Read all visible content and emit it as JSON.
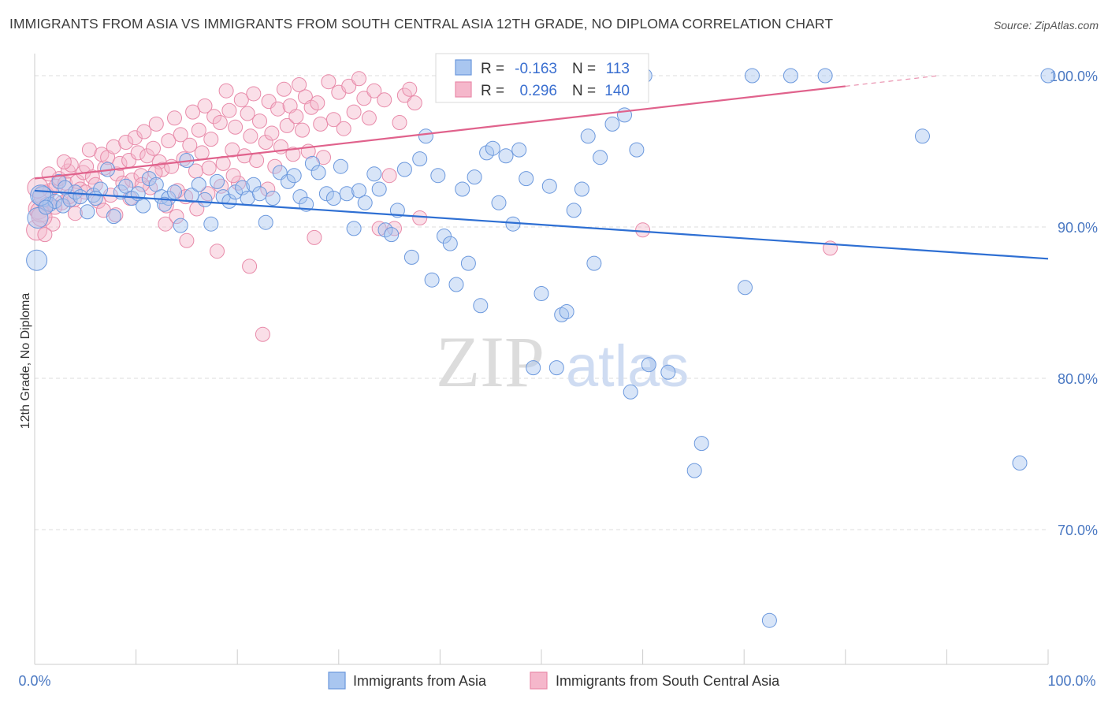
{
  "title": "IMMIGRANTS FROM ASIA VS IMMIGRANTS FROM SOUTH CENTRAL ASIA 12TH GRADE, NO DIPLOMA CORRELATION CHART",
  "source": "Source: ZipAtlas.com",
  "watermark": {
    "zip": "ZIP",
    "atlas": "atlas"
  },
  "colors": {
    "blue_fill": "#a9c6f0",
    "blue_stroke": "#6b98dd",
    "blue_line": "#2e6fd3",
    "pink_fill": "#f5b7cb",
    "pink_stroke": "#e88aa9",
    "pink_line": "#e0628c",
    "grid": "#dddddd",
    "tick_text": "#4a78c2"
  },
  "legend_box": {
    "rows": [
      {
        "r_label": "R =",
        "r_value": "-0.163",
        "n_label": "N =",
        "n_value": "113"
      },
      {
        "r_label": "R =",
        "r_value": "0.296",
        "n_label": "N =",
        "n_value": "140"
      }
    ]
  },
  "chart_data": {
    "type": "scatter",
    "xlabel": "",
    "ylabel": "12th Grade, No Diploma",
    "xlim": [
      0,
      100
    ],
    "ylim": [
      60,
      101.5
    ],
    "x_tick_labels": [
      "0.0%",
      "100.0%"
    ],
    "y_ticks": [
      70,
      80,
      90,
      100
    ],
    "y_tick_labels": [
      "70.0%",
      "80.0%",
      "90.0%",
      "100.0%"
    ],
    "grid": true,
    "legend_position": "bottom-center",
    "series": [
      {
        "name": "Immigrants from Asia",
        "color": "blue",
        "trend": {
          "x": [
            0,
            100
          ],
          "y": [
            92.4,
            87.9
          ]
        },
        "points": [
          [
            0.2,
            87.8
          ],
          [
            0.3,
            90.6
          ],
          [
            0.8,
            92.0
          ],
          [
            1.5,
            91.5
          ],
          [
            2.0,
            91.7
          ],
          [
            2.8,
            91.4
          ],
          [
            3.5,
            91.8
          ],
          [
            4.0,
            92.3
          ],
          [
            4.5,
            92.0
          ],
          [
            5.2,
            91.0
          ],
          [
            5.8,
            92.1
          ],
          [
            6.5,
            92.5
          ],
          [
            7.2,
            93.8
          ],
          [
            7.8,
            90.7
          ],
          [
            8.5,
            92.3
          ],
          [
            9.0,
            92.7
          ],
          [
            9.6,
            91.9
          ],
          [
            10.2,
            92.2
          ],
          [
            10.7,
            91.4
          ],
          [
            11.3,
            93.2
          ],
          [
            12.0,
            92.8
          ],
          [
            12.5,
            92.0
          ],
          [
            13.2,
            91.9
          ],
          [
            13.8,
            92.3
          ],
          [
            14.4,
            90.1
          ],
          [
            15.0,
            94.4
          ],
          [
            15.5,
            92.1
          ],
          [
            16.2,
            92.8
          ],
          [
            16.8,
            91.8
          ],
          [
            17.4,
            90.2
          ],
          [
            18.0,
            93.0
          ],
          [
            18.6,
            92.0
          ],
          [
            19.2,
            91.7
          ],
          [
            19.8,
            92.3
          ],
          [
            20.5,
            92.6
          ],
          [
            21.0,
            91.9
          ],
          [
            21.6,
            92.8
          ],
          [
            22.2,
            92.2
          ],
          [
            22.8,
            90.3
          ],
          [
            23.5,
            91.9
          ],
          [
            24.2,
            93.6
          ],
          [
            25.0,
            93.0
          ],
          [
            25.6,
            93.4
          ],
          [
            26.2,
            92.0
          ],
          [
            26.8,
            91.5
          ],
          [
            27.4,
            94.2
          ],
          [
            28.0,
            93.6
          ],
          [
            28.8,
            92.2
          ],
          [
            29.5,
            91.9
          ],
          [
            30.2,
            94.0
          ],
          [
            30.8,
            92.2
          ],
          [
            31.5,
            89.9
          ],
          [
            32.0,
            92.4
          ],
          [
            32.6,
            91.6
          ],
          [
            33.5,
            93.5
          ],
          [
            34.0,
            92.5
          ],
          [
            34.6,
            89.8
          ],
          [
            35.2,
            89.5
          ],
          [
            35.8,
            91.1
          ],
          [
            36.5,
            93.8
          ],
          [
            37.2,
            88.0
          ],
          [
            38.0,
            94.5
          ],
          [
            38.6,
            96.0
          ],
          [
            39.2,
            86.5
          ],
          [
            39.8,
            93.4
          ],
          [
            40.4,
            89.4
          ],
          [
            41.0,
            88.9
          ],
          [
            41.6,
            86.2
          ],
          [
            42.2,
            92.5
          ],
          [
            42.8,
            87.6
          ],
          [
            43.4,
            93.3
          ],
          [
            44.0,
            84.8
          ],
          [
            44.6,
            94.9
          ],
          [
            45.2,
            95.2
          ],
          [
            45.8,
            91.6
          ],
          [
            46.5,
            94.7
          ],
          [
            47.2,
            90.2
          ],
          [
            47.8,
            95.1
          ],
          [
            48.5,
            93.2
          ],
          [
            49.2,
            80.7
          ],
          [
            50.0,
            85.6
          ],
          [
            50.8,
            92.7
          ],
          [
            51.5,
            80.7
          ],
          [
            52.0,
            84.2
          ],
          [
            52.5,
            84.4
          ],
          [
            53.2,
            91.1
          ],
          [
            54.0,
            92.5
          ],
          [
            54.6,
            96.0
          ],
          [
            55.2,
            87.6
          ],
          [
            55.8,
            94.6
          ],
          [
            57.0,
            96.8
          ],
          [
            58.2,
            97.4
          ],
          [
            58.8,
            79.1
          ],
          [
            59.4,
            95.1
          ],
          [
            60.2,
            100.0
          ],
          [
            60.6,
            80.9
          ],
          [
            62.5,
            80.4
          ],
          [
            65.1,
            73.9
          ],
          [
            65.8,
            75.7
          ],
          [
            70.1,
            86.0
          ],
          [
            70.8,
            100.0
          ],
          [
            72.5,
            64.0
          ],
          [
            74.6,
            100.0
          ],
          [
            78.0,
            100.0
          ],
          [
            87.6,
            96.0
          ],
          [
            97.2,
            74.4
          ],
          [
            100.0,
            100.0
          ],
          [
            0.6,
            92.1
          ],
          [
            1.1,
            91.3
          ],
          [
            2.4,
            93.0
          ],
          [
            3.0,
            92.6
          ],
          [
            6.0,
            91.9
          ],
          [
            12.8,
            91.5
          ]
        ]
      },
      {
        "name": "Immigrants from South Central Asia",
        "color": "pink",
        "trend": {
          "x": [
            0,
            80
          ],
          "y": [
            93.2,
            99.3
          ]
        },
        "points": [
          [
            0.2,
            89.8
          ],
          [
            0.4,
            91.2
          ],
          [
            0.6,
            91.0
          ],
          [
            0.9,
            92.1
          ],
          [
            1.2,
            91.5
          ],
          [
            1.5,
            92.4
          ],
          [
            1.8,
            90.2
          ],
          [
            2.1,
            92.7
          ],
          [
            2.4,
            93.2
          ],
          [
            2.7,
            91.6
          ],
          [
            3.0,
            92.9
          ],
          [
            3.3,
            93.7
          ],
          [
            3.6,
            94.1
          ],
          [
            3.9,
            91.8
          ],
          [
            4.2,
            93.0
          ],
          [
            4.5,
            92.5
          ],
          [
            4.8,
            93.6
          ],
          [
            5.1,
            94.0
          ],
          [
            5.4,
            95.1
          ],
          [
            5.7,
            93.3
          ],
          [
            6.0,
            92.8
          ],
          [
            6.3,
            91.7
          ],
          [
            6.6,
            94.8
          ],
          [
            6.9,
            93.9
          ],
          [
            7.2,
            94.6
          ],
          [
            7.5,
            92.1
          ],
          [
            7.8,
            95.3
          ],
          [
            8.1,
            93.5
          ],
          [
            8.4,
            94.2
          ],
          [
            8.7,
            92.9
          ],
          [
            9.0,
            95.6
          ],
          [
            9.3,
            94.4
          ],
          [
            9.6,
            93.1
          ],
          [
            9.9,
            95.9
          ],
          [
            10.2,
            94.9
          ],
          [
            10.5,
            93.4
          ],
          [
            10.8,
            96.3
          ],
          [
            11.1,
            94.7
          ],
          [
            11.4,
            92.6
          ],
          [
            11.7,
            95.2
          ],
          [
            12.0,
            96.8
          ],
          [
            12.3,
            94.3
          ],
          [
            12.6,
            93.8
          ],
          [
            12.9,
            90.2
          ],
          [
            13.2,
            95.7
          ],
          [
            13.5,
            94.0
          ],
          [
            13.8,
            97.2
          ],
          [
            14.1,
            92.4
          ],
          [
            14.4,
            96.1
          ],
          [
            14.7,
            94.5
          ],
          [
            15.0,
            89.1
          ],
          [
            15.3,
            95.4
          ],
          [
            15.6,
            97.6
          ],
          [
            15.9,
            93.7
          ],
          [
            16.2,
            96.4
          ],
          [
            16.5,
            94.9
          ],
          [
            16.8,
            98.0
          ],
          [
            17.1,
            92.2
          ],
          [
            17.4,
            95.8
          ],
          [
            17.7,
            97.3
          ],
          [
            18.0,
            88.4
          ],
          [
            18.3,
            96.9
          ],
          [
            18.6,
            94.2
          ],
          [
            18.9,
            99.0
          ],
          [
            19.2,
            97.7
          ],
          [
            19.5,
            95.1
          ],
          [
            19.8,
            96.6
          ],
          [
            20.1,
            92.9
          ],
          [
            20.4,
            98.4
          ],
          [
            20.7,
            94.7
          ],
          [
            21.0,
            97.5
          ],
          [
            21.3,
            96.0
          ],
          [
            21.6,
            98.8
          ],
          [
            21.9,
            94.4
          ],
          [
            22.2,
            97.0
          ],
          [
            22.5,
            82.9
          ],
          [
            22.8,
            95.6
          ],
          [
            23.1,
            98.3
          ],
          [
            23.4,
            96.2
          ],
          [
            23.7,
            94.0
          ],
          [
            24.0,
            97.8
          ],
          [
            24.3,
            95.3
          ],
          [
            24.6,
            99.1
          ],
          [
            24.9,
            96.7
          ],
          [
            25.2,
            98.0
          ],
          [
            25.5,
            94.8
          ],
          [
            25.8,
            97.3
          ],
          [
            26.1,
            99.4
          ],
          [
            26.4,
            96.4
          ],
          [
            26.7,
            98.6
          ],
          [
            27.0,
            95.0
          ],
          [
            27.3,
            97.9
          ],
          [
            27.6,
            89.3
          ],
          [
            27.9,
            98.2
          ],
          [
            28.2,
            96.8
          ],
          [
            28.5,
            94.6
          ],
          [
            29.0,
            99.6
          ],
          [
            29.5,
            97.1
          ],
          [
            30.0,
            98.9
          ],
          [
            30.5,
            96.5
          ],
          [
            31.0,
            99.3
          ],
          [
            31.5,
            97.6
          ],
          [
            32.0,
            99.8
          ],
          [
            32.5,
            98.5
          ],
          [
            33.0,
            97.2
          ],
          [
            33.5,
            99.0
          ],
          [
            34.0,
            89.9
          ],
          [
            34.5,
            98.4
          ],
          [
            35.0,
            93.4
          ],
          [
            35.5,
            89.9
          ],
          [
            36.0,
            96.9
          ],
          [
            36.5,
            98.7
          ],
          [
            37.0,
            99.1
          ],
          [
            37.5,
            98.2
          ],
          [
            38.0,
            90.6
          ],
          [
            60.0,
            89.8
          ],
          [
            78.5,
            88.6
          ],
          [
            0.3,
            92.6
          ],
          [
            0.7,
            90.7
          ],
          [
            1.0,
            89.5
          ],
          [
            1.4,
            93.5
          ],
          [
            2.0,
            91.3
          ],
          [
            2.9,
            94.3
          ],
          [
            3.4,
            92.0
          ],
          [
            4.0,
            90.9
          ],
          [
            5.0,
            92.3
          ],
          [
            6.8,
            91.1
          ],
          [
            8.0,
            90.8
          ],
          [
            9.4,
            91.9
          ],
          [
            10.6,
            92.8
          ],
          [
            11.9,
            93.6
          ],
          [
            13.0,
            91.4
          ],
          [
            14.0,
            90.7
          ],
          [
            14.9,
            92.0
          ],
          [
            16.0,
            91.2
          ],
          [
            17.2,
            93.9
          ],
          [
            18.4,
            92.7
          ],
          [
            19.6,
            93.4
          ],
          [
            21.2,
            87.4
          ],
          [
            23.0,
            92.5
          ]
        ]
      }
    ]
  }
}
